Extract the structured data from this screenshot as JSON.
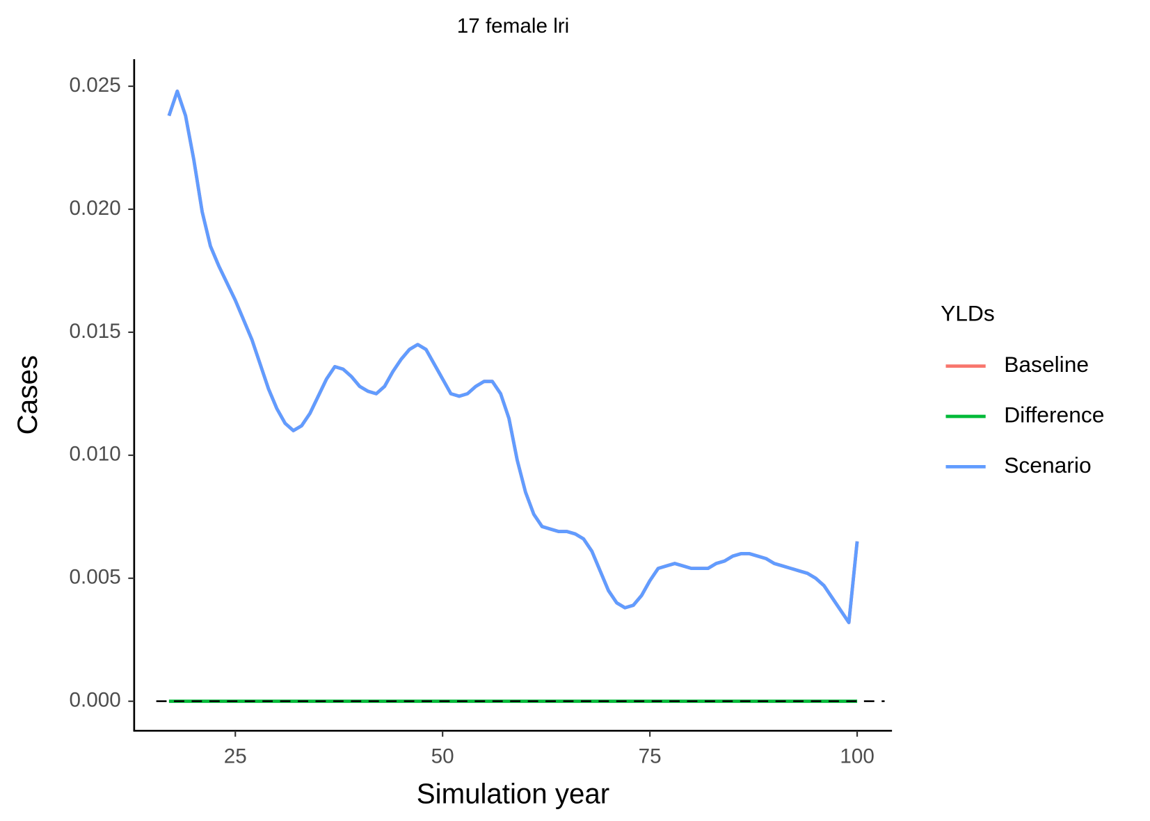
{
  "chart_data": {
    "type": "line",
    "title": "17 female lri",
    "x_label": "Simulation year",
    "y_label": "Cases",
    "legend_title": "YLDs",
    "x": [
      17,
      18,
      19,
      20,
      21,
      22,
      23,
      24,
      25,
      26,
      27,
      28,
      29,
      30,
      31,
      32,
      33,
      34,
      35,
      36,
      37,
      38,
      39,
      40,
      41,
      42,
      43,
      44,
      45,
      46,
      47,
      48,
      49,
      50,
      51,
      52,
      53,
      54,
      55,
      56,
      57,
      58,
      59,
      60,
      61,
      62,
      63,
      64,
      65,
      66,
      67,
      68,
      69,
      70,
      71,
      72,
      73,
      74,
      75,
      76,
      77,
      78,
      79,
      80,
      81,
      82,
      83,
      84,
      85,
      86,
      87,
      88,
      89,
      90,
      91,
      92,
      93,
      94,
      95,
      96,
      97,
      98,
      99,
      100
    ],
    "series": [
      {
        "name": "Baseline",
        "color": "#F8766D",
        "values": [
          0.0238,
          0.0248,
          0.0238,
          0.022,
          0.0199,
          0.0185,
          0.0177,
          0.017,
          0.0163,
          0.0155,
          0.0147,
          0.0137,
          0.0127,
          0.0119,
          0.0113,
          0.011,
          0.0112,
          0.0117,
          0.0124,
          0.0131,
          0.0136,
          0.0135,
          0.0132,
          0.0128,
          0.0126,
          0.0125,
          0.0128,
          0.0134,
          0.0139,
          0.0143,
          0.0145,
          0.0143,
          0.0137,
          0.0131,
          0.0125,
          0.0124,
          0.0125,
          0.0128,
          0.013,
          0.013,
          0.0125,
          0.0115,
          0.0098,
          0.0085,
          0.0076,
          0.0071,
          0.007,
          0.0069,
          0.0069,
          0.0068,
          0.0066,
          0.0061,
          0.0053,
          0.0045,
          0.004,
          0.0038,
          0.0039,
          0.0043,
          0.0049,
          0.0054,
          0.0055,
          0.0056,
          0.0055,
          0.0054,
          0.0054,
          0.0054,
          0.0056,
          0.0057,
          0.0059,
          0.006,
          0.006,
          0.0059,
          0.0058,
          0.0056,
          0.0055,
          0.0054,
          0.0053,
          0.0052,
          0.005,
          0.0047,
          0.0042,
          0.0037,
          0.0032,
          0.0065
        ]
      },
      {
        "name": "Difference",
        "color": "#00BA38",
        "values": [
          0,
          0,
          0,
          0,
          0,
          0,
          0,
          0,
          0,
          0,
          0,
          0,
          0,
          0,
          0,
          0,
          0,
          0,
          0,
          0,
          0,
          0,
          0,
          0,
          0,
          0,
          0,
          0,
          0,
          0,
          0,
          0,
          0,
          0,
          0,
          0,
          0,
          0,
          0,
          0,
          0,
          0,
          0,
          0,
          0,
          0,
          0,
          0,
          0,
          0,
          0,
          0,
          0,
          0,
          0,
          0,
          0,
          0,
          0,
          0,
          0,
          0,
          0,
          0,
          0,
          0,
          0,
          0,
          0,
          0,
          0,
          0,
          0,
          0,
          0,
          0,
          0,
          0,
          0,
          0,
          0,
          0,
          0,
          0
        ]
      },
      {
        "name": "Scenario",
        "color": "#619CFF",
        "values": [
          0.0238,
          0.0248,
          0.0238,
          0.022,
          0.0199,
          0.0185,
          0.0177,
          0.017,
          0.0163,
          0.0155,
          0.0147,
          0.0137,
          0.0127,
          0.0119,
          0.0113,
          0.011,
          0.0112,
          0.0117,
          0.0124,
          0.0131,
          0.0136,
          0.0135,
          0.0132,
          0.0128,
          0.0126,
          0.0125,
          0.0128,
          0.0134,
          0.0139,
          0.0143,
          0.0145,
          0.0143,
          0.0137,
          0.0131,
          0.0125,
          0.0124,
          0.0125,
          0.0128,
          0.013,
          0.013,
          0.0125,
          0.0115,
          0.0098,
          0.0085,
          0.0076,
          0.0071,
          0.007,
          0.0069,
          0.0069,
          0.0068,
          0.0066,
          0.0061,
          0.0053,
          0.0045,
          0.004,
          0.0038,
          0.0039,
          0.0043,
          0.0049,
          0.0054,
          0.0055,
          0.0056,
          0.0055,
          0.0054,
          0.0054,
          0.0054,
          0.0056,
          0.0057,
          0.0059,
          0.006,
          0.006,
          0.0059,
          0.0058,
          0.0056,
          0.0055,
          0.0054,
          0.0053,
          0.0052,
          0.005,
          0.0047,
          0.0042,
          0.0037,
          0.0032,
          0.0065
        ]
      }
    ],
    "hline": 0,
    "xlim": [
      12.8,
      104.2
    ],
    "xticks": [
      25,
      50,
      75,
      100
    ],
    "ylim": [
      -0.0012,
      0.0261
    ],
    "yticks": [
      {
        "value": 0,
        "label": "0.000"
      },
      {
        "value": 0.005,
        "label": "0.005"
      },
      {
        "value": 0.01,
        "label": "0.010"
      },
      {
        "value": 0.015,
        "label": "0.015"
      },
      {
        "value": 0.02,
        "label": "0.020"
      },
      {
        "value": 0.025,
        "label": "0.025"
      }
    ],
    "grid": false
  }
}
